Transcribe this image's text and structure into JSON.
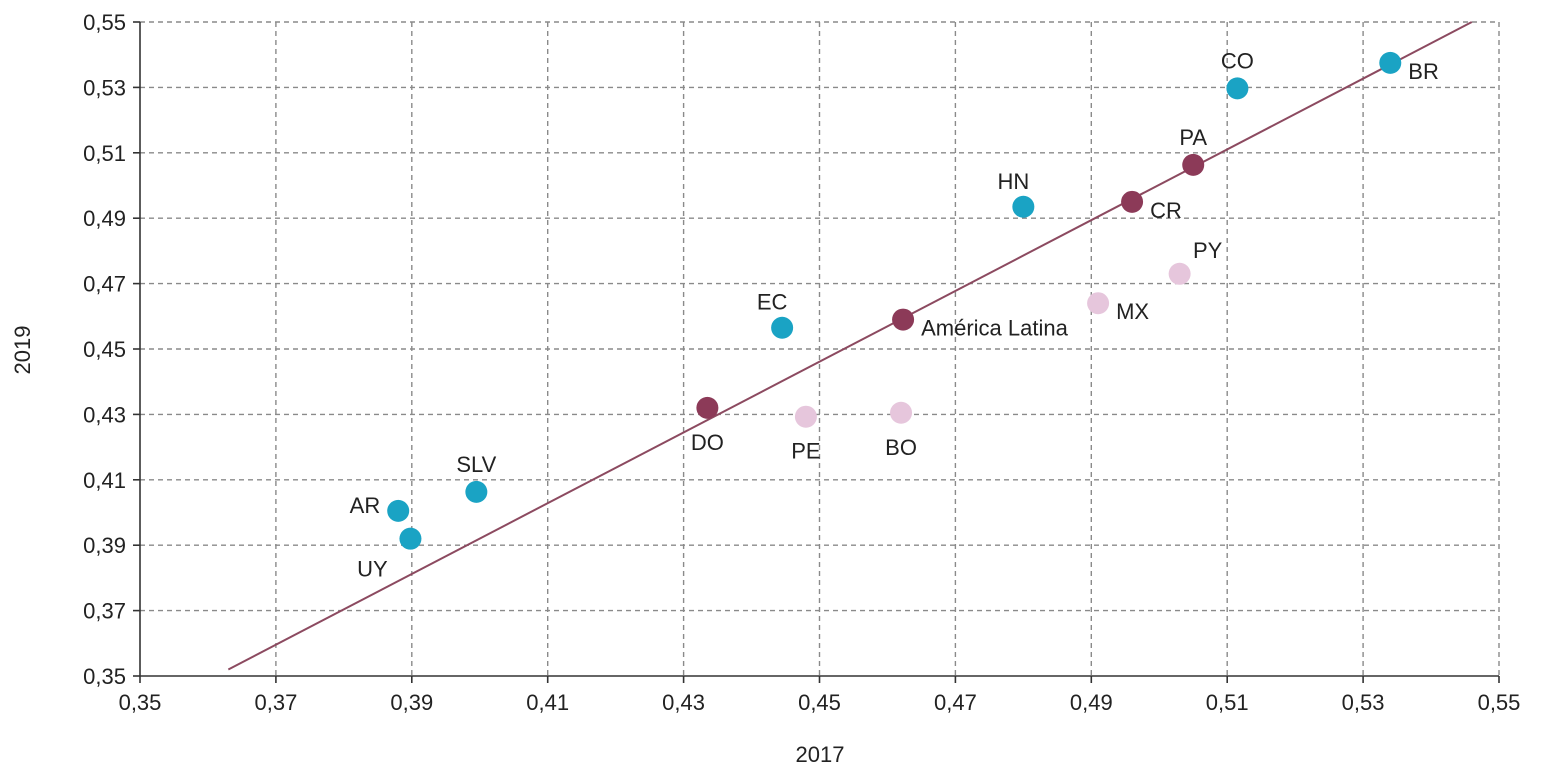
{
  "chart_data": {
    "type": "scatter",
    "xlabel": "2017",
    "ylabel": "2019",
    "xlim": [
      0.35,
      0.55
    ],
    "ylim": [
      0.35,
      0.55
    ],
    "xticks": [
      "0,35",
      "0,37",
      "0,39",
      "0,41",
      "0,43",
      "0,45",
      "0,47",
      "0,49",
      "0,51",
      "0,53",
      "0,55"
    ],
    "yticks": [
      "0,35",
      "0,37",
      "0,39",
      "0,41",
      "0,43",
      "0,45",
      "0,47",
      "0,49",
      "0,51",
      "0,53",
      "0,55"
    ],
    "grid": true,
    "colors": {
      "teal": "#1aa3c4",
      "maroon": "#8c3a58",
      "pink": "#e6c6dc",
      "line": "#8c4a60"
    },
    "reference_line": {
      "x": [
        0.363,
        0.546
      ],
      "y": [
        0.352,
        0.55
      ]
    },
    "points": [
      {
        "label": "AR",
        "x": 0.388,
        "y": 0.4005,
        "group": "teal",
        "pos": "left"
      },
      {
        "label": "UY",
        "x": 0.3898,
        "y": 0.392,
        "group": "teal",
        "pos": "below-left"
      },
      {
        "label": "SLV",
        "x": 0.3995,
        "y": 0.4063,
        "group": "teal",
        "pos": "above"
      },
      {
        "label": "EC",
        "x": 0.4445,
        "y": 0.4565,
        "group": "teal",
        "pos": "above-left"
      },
      {
        "label": "HN",
        "x": 0.48,
        "y": 0.4935,
        "group": "teal",
        "pos": "above-left"
      },
      {
        "label": "CO",
        "x": 0.5115,
        "y": 0.5297,
        "group": "teal",
        "pos": "above"
      },
      {
        "label": "BR",
        "x": 0.534,
        "y": 0.5375,
        "group": "teal",
        "pos": "right"
      },
      {
        "label": "DO",
        "x": 0.4335,
        "y": 0.432,
        "group": "maroon",
        "pos": "below"
      },
      {
        "label": "América Latina",
        "x": 0.4623,
        "y": 0.459,
        "group": "maroon",
        "pos": "right"
      },
      {
        "label": "CR",
        "x": 0.496,
        "y": 0.495,
        "group": "maroon",
        "pos": "right"
      },
      {
        "label": "PA",
        "x": 0.505,
        "y": 0.5063,
        "group": "maroon",
        "pos": "above"
      },
      {
        "label": "PE",
        "x": 0.448,
        "y": 0.4293,
        "group": "pink",
        "pos": "below"
      },
      {
        "label": "BO",
        "x": 0.462,
        "y": 0.4305,
        "group": "pink",
        "pos": "below"
      },
      {
        "label": "MX",
        "x": 0.491,
        "y": 0.464,
        "group": "pink",
        "pos": "right"
      },
      {
        "label": "PY",
        "x": 0.503,
        "y": 0.473,
        "group": "pink",
        "pos": "above-right"
      }
    ]
  }
}
